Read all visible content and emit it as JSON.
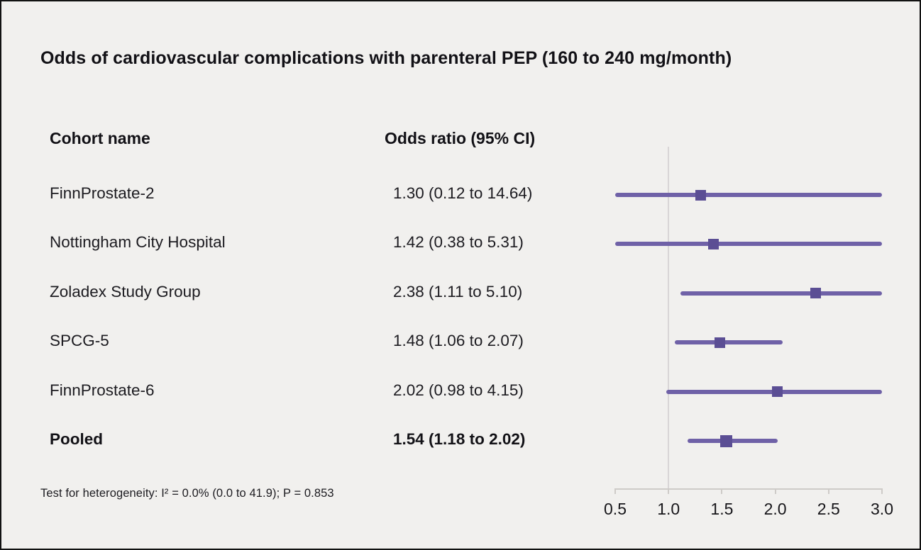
{
  "figure": {
    "title": "Odds of cardiovascular complications with parenteral PEP (160 to 240 mg/month)",
    "columns": {
      "cohort": "Cohort name",
      "odds_ratio": "Odds ratio (95% CI)"
    },
    "footnote": "Test for heterogeneity: I² = 0.0% (0.0 to 41.9); P = 0.853"
  },
  "colors": {
    "background": "#f1f0ee",
    "ci_line": "#6f61a7",
    "marker": "#5b4e94",
    "reference_line": "#d8d5d6",
    "axis_line": "#cecbc8",
    "text": "#17161a"
  },
  "chart_data": {
    "type": "forest",
    "title": "Odds of cardiovascular complications with parenteral PEP (160 to 240 mg/month)",
    "xlabel": "Odds ratio (95% CI)",
    "xlim": [
      0.5,
      3.0
    ],
    "x_ticks": [
      0.5,
      1.0,
      1.5,
      2.0,
      2.5,
      3.0
    ],
    "reference_line": 1.0,
    "legend_position": "none",
    "grid": false,
    "studies": [
      {
        "name": "FinnProstate-2",
        "label": "1.30 (0.12 to 14.64)",
        "or": 1.3,
        "ci_low": 0.12,
        "ci_high": 14.64,
        "pooled": false
      },
      {
        "name": "Nottingham City Hospital",
        "label": "1.42 (0.38 to 5.31)",
        "or": 1.42,
        "ci_low": 0.38,
        "ci_high": 5.31,
        "pooled": false
      },
      {
        "name": "Zoladex Study Group",
        "label": "2.38 (1.11 to 5.10)",
        "or": 2.38,
        "ci_low": 1.11,
        "ci_high": 5.1,
        "pooled": false
      },
      {
        "name": "SPCG-5",
        "label": "1.48 (1.06 to 2.07)",
        "or": 1.48,
        "ci_low": 1.06,
        "ci_high": 2.07,
        "pooled": false
      },
      {
        "name": "FinnProstate-6",
        "label": "2.02 (0.98 to 4.15)",
        "or": 2.02,
        "ci_low": 0.98,
        "ci_high": 4.15,
        "pooled": false
      },
      {
        "name": "Pooled",
        "label": "1.54 (1.18 to 2.02)",
        "or": 1.54,
        "ci_low": 1.18,
        "ci_high": 2.02,
        "pooled": true
      }
    ],
    "heterogeneity": "Test for heterogeneity: I² = 0.0% (0.0 to 41.9); P = 0.853"
  }
}
